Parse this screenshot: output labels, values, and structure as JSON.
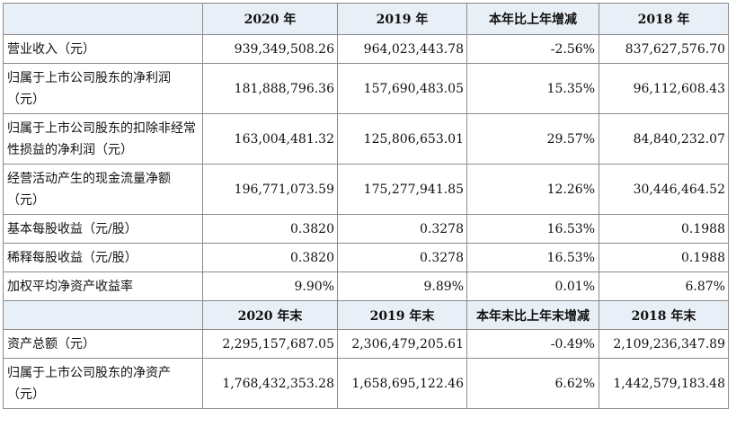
{
  "header1": [
    "2020 年",
    "2019 年",
    "本年比上年增减",
    "2018 年"
  ],
  "rows1": [
    {
      "label": "营业收入（元）",
      "v2020": "939,349,508.26",
      "v2019": "964,023,443.78",
      "change": "-2.56%",
      "v2018": "837,627,576.70"
    },
    {
      "label": "归属于上市公司股东的净利润（元）",
      "v2020": "181,888,796.36",
      "v2019": "157,690,483.05",
      "change": "15.35%",
      "v2018": "96,112,608.43"
    },
    {
      "label": "归属于上市公司股东的扣除非经常性损益的净利润（元）",
      "v2020": "163,004,481.32",
      "v2019": "125,806,653.01",
      "change": "29.57%",
      "v2018": "84,840,232.07"
    },
    {
      "label": "经营活动产生的现金流量净额（元）",
      "v2020": "196,771,073.59",
      "v2019": "175,277,941.85",
      "change": "12.26%",
      "v2018": "30,446,464.52"
    },
    {
      "label": "基本每股收益（元/股）",
      "v2020": "0.3820",
      "v2019": "0.3278",
      "change": "16.53%",
      "v2018": "0.1988"
    },
    {
      "label": "稀释每股收益（元/股）",
      "v2020": "0.3820",
      "v2019": "0.3278",
      "change": "16.53%",
      "v2018": "0.1988"
    },
    {
      "label": "加权平均净资产收益率",
      "v2020": "9.90%",
      "v2019": "9.89%",
      "change": "0.01%",
      "v2018": "6.87%"
    }
  ],
  "header2": [
    "2020 年末",
    "2019 年末",
    "本年末比上年末增减",
    "2018 年末"
  ],
  "rows2": [
    {
      "label": "资产总额（元）",
      "v2020": "2,295,157,687.05",
      "v2019": "2,306,479,205.61",
      "change": "-0.49%",
      "v2018": "2,109,236,347.89"
    },
    {
      "label": "归属于上市公司股东的净资产（元）",
      "v2020": "1,768,432,353.28",
      "v2019": "1,658,695,122.46",
      "change": "6.62%",
      "v2018": "1,442,579,183.48"
    }
  ]
}
